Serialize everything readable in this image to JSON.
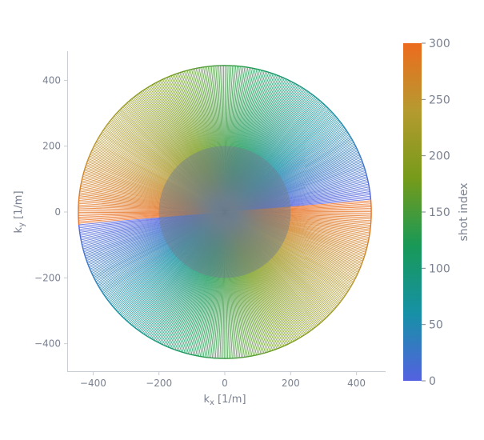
{
  "chart_data": {
    "type": "line",
    "trajectory": "radial",
    "n_shots": 301,
    "k_max": 445,
    "angle_offset_deg": 5,
    "x_axis": {
      "label_main": "k",
      "label_sub": "x",
      "label_unit": " [1/m]",
      "lim": [
        -450,
        450
      ],
      "ticks": [
        -400,
        -200,
        0,
        200,
        400
      ],
      "tick_labels": [
        "−400",
        "−200",
        "0",
        "200",
        "400"
      ]
    },
    "y_axis": {
      "label_main": "k",
      "label_sub": "y",
      "label_unit": " [1/m]",
      "lim": [
        -450,
        450
      ],
      "ticks": [
        400,
        200,
        0,
        -200,
        -400
      ],
      "tick_labels": [
        "400",
        "200",
        "0",
        "−200",
        "−400"
      ]
    },
    "colorbar": {
      "label": "shot index",
      "range": [
        0,
        300
      ],
      "ticks": [
        0,
        50,
        100,
        150,
        200,
        250,
        300
      ],
      "tick_labels": [
        "0",
        "50",
        "100",
        "150",
        "200",
        "250",
        "300"
      ],
      "colors": [
        "#5461e0",
        "#1691a6",
        "#189957",
        "#769b1a",
        "#b59a30",
        "#ed6b1e"
      ]
    },
    "grid": false,
    "overlay_color": "#708090"
  }
}
